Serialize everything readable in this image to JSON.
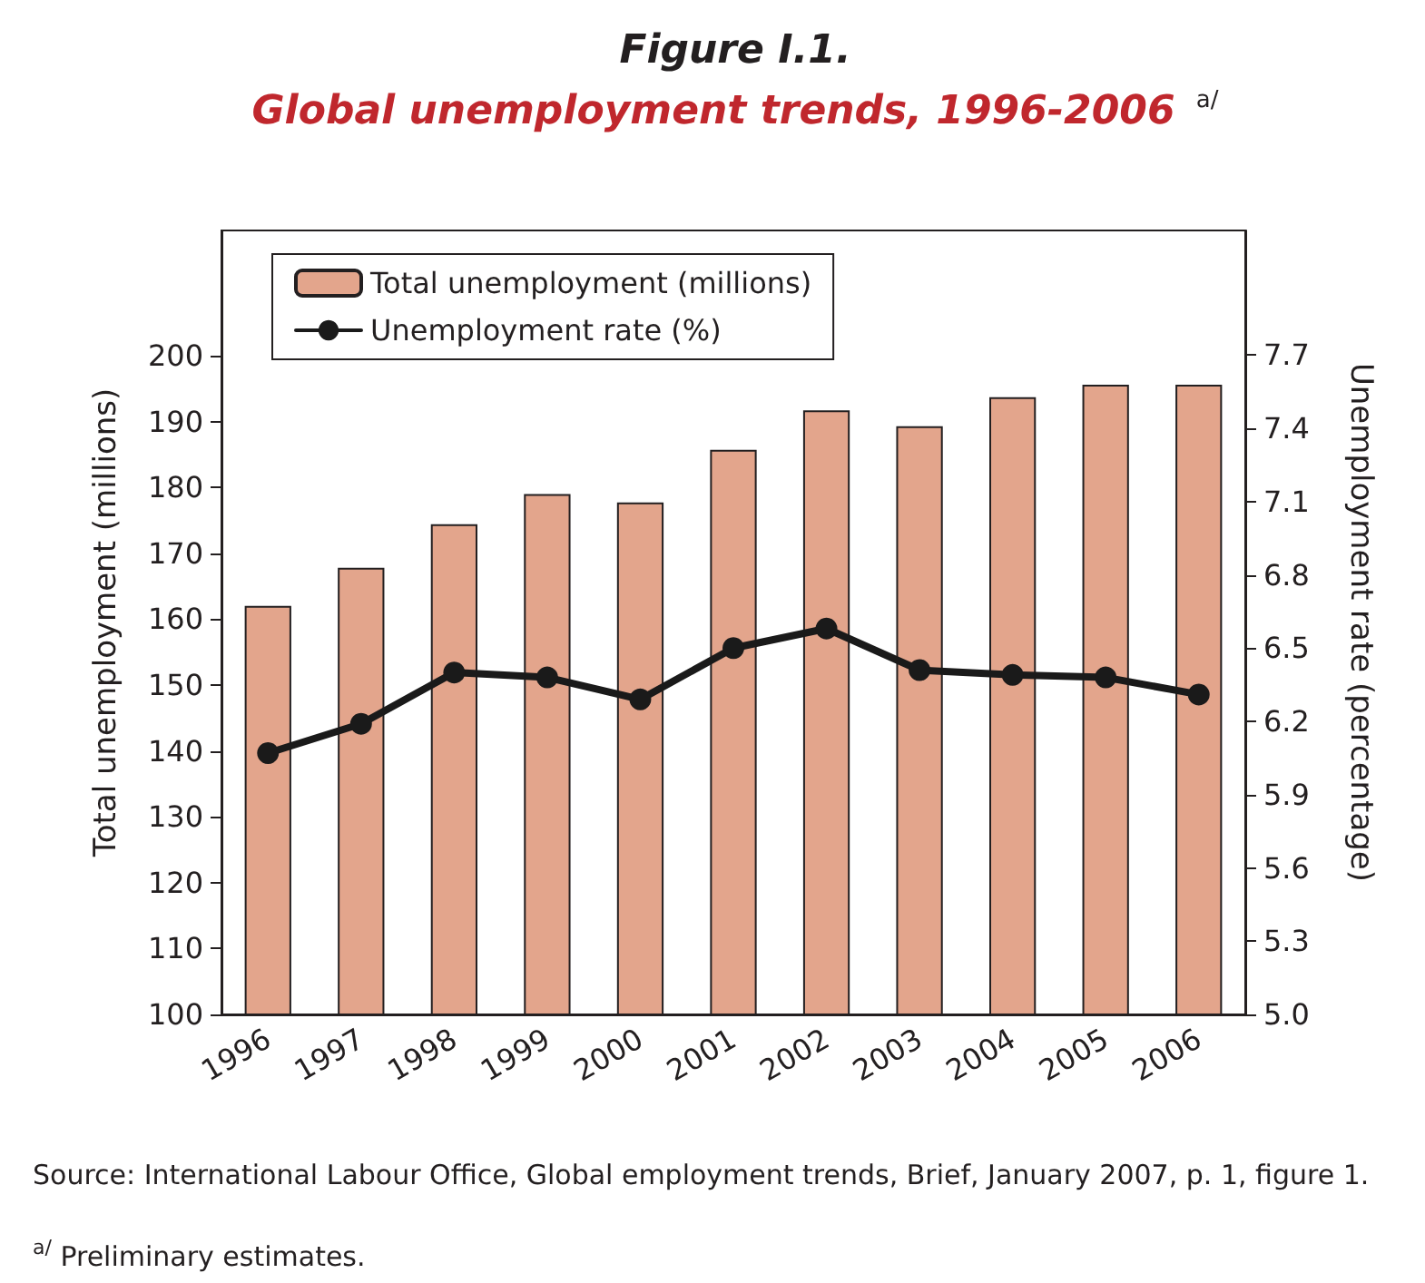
{
  "chart_data": {
    "type": "bar",
    "title": "Figure I.1.",
    "subtitle": "Global unemployment trends, 1996-2006 $^{a/}$",
    "ylabel": "Total unemployment (millions)",
    "y2label": "Unemployment rate (percentage)",
    "categories": [
      "1996",
      "1997",
      "1998",
      "1999",
      "2000",
      "2001",
      "2002",
      "2003",
      "2004",
      "2005",
      "2006"
    ],
    "series": [
      {
        "name": "Total unemployment (millions)",
        "color": "#e3a58c",
        "values": [
          162,
          167.8,
          174.4,
          179,
          177.7,
          185.7,
          191.7,
          189.3,
          193.7,
          195.6,
          195.6
        ]
      },
      {
        "name": "Unemployment rate (%)",
        "type": "line",
        "axis": "y2",
        "color": "#1a1a1a",
        "values": [
          6.07,
          6.19,
          6.4,
          6.38,
          6.29,
          6.5,
          6.58,
          6.41,
          6.39,
          6.38,
          6.31
        ]
      }
    ],
    "ylim": [
      100,
      219
    ],
    "yticks": [
      100,
      110,
      120,
      130,
      140,
      150,
      160,
      170,
      180,
      190,
      200
    ],
    "y2lim": [
      5.0,
      8.21
    ],
    "y2ticks": [
      {
        "value": 5.0,
        "label": "5.0"
      },
      {
        "value": 5.3,
        "label": "5.3"
      },
      {
        "value": 5.6,
        "label": "5.6"
      },
      {
        "value": 5.9,
        "label": "5.9"
      },
      {
        "value": 6.2,
        "label": "6.2"
      },
      {
        "value": 6.5,
        "label": "6.5"
      },
      {
        "value": 6.8,
        "label": "6.8"
      },
      {
        "value": 7.1,
        "label": "7.1"
      },
      {
        "value": 7.4,
        "label": "7.4"
      },
      {
        "value": 7.7,
        "label": "7.7"
      }
    ],
    "grid": false,
    "legend": "top left",
    "marker": "circle",
    "line_style": "solid",
    "annotations": [
      "Source: International Labour Office, Global employment trends, Brief, January 2007, p. 1, figure 1.",
      "$^{a/}$ Preliminary estimates."
    ]
  }
}
